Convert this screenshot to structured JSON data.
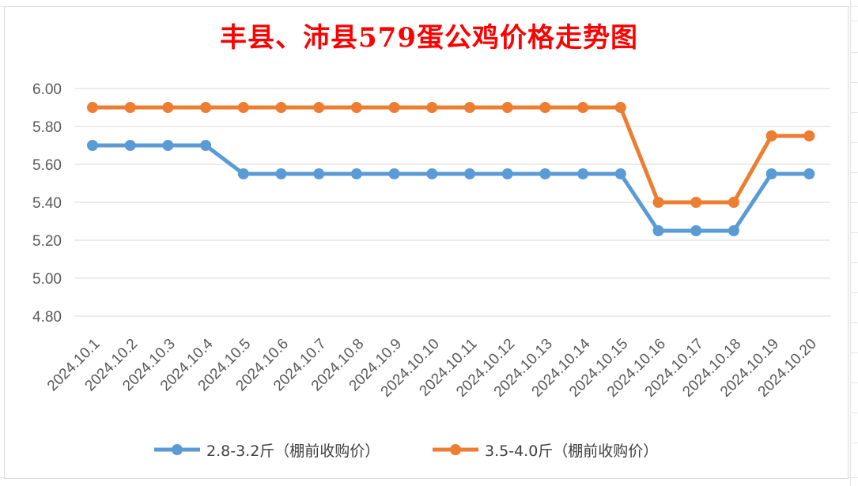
{
  "chart_data": {
    "type": "line",
    "title": "丰县、沛县579蛋公鸡价格走势图",
    "categories": [
      "2024.10.1",
      "2024.10.2",
      "2024.10.3",
      "2024.10.4",
      "2024.10.5",
      "2024.10.6",
      "2024.10.7",
      "2024.10.8",
      "2024.10.9",
      "2024.10.10",
      "2024.10.11",
      "2024.10.12",
      "2024.10.13",
      "2024.10.14",
      "2024.10.15",
      "2024.10.16",
      "2024.10.17",
      "2024.10.18",
      "2024.10.19",
      "2024.10.20"
    ],
    "series": [
      {
        "name": "2.8-3.2斤（棚前收购价）",
        "color": "#5b9bd5",
        "values": [
          5.7,
          5.7,
          5.7,
          5.7,
          5.55,
          5.55,
          5.55,
          5.55,
          5.55,
          5.55,
          5.55,
          5.55,
          5.55,
          5.55,
          5.55,
          5.25,
          5.25,
          5.25,
          5.55,
          5.55
        ]
      },
      {
        "name": "3.5-4.0斤（棚前收购价）",
        "color": "#ed7d31",
        "values": [
          5.9,
          5.9,
          5.9,
          5.9,
          5.9,
          5.9,
          5.9,
          5.9,
          5.9,
          5.9,
          5.9,
          5.9,
          5.9,
          5.9,
          5.9,
          5.4,
          5.4,
          5.4,
          5.75,
          5.75
        ]
      }
    ],
    "yticks": [
      "4.80",
      "5.00",
      "5.20",
      "5.40",
      "5.60",
      "5.80",
      "6.00"
    ],
    "ylim": [
      4.8,
      6.0
    ],
    "grid": true,
    "legend": "bottom",
    "xlabel": "",
    "ylabel": ""
  }
}
